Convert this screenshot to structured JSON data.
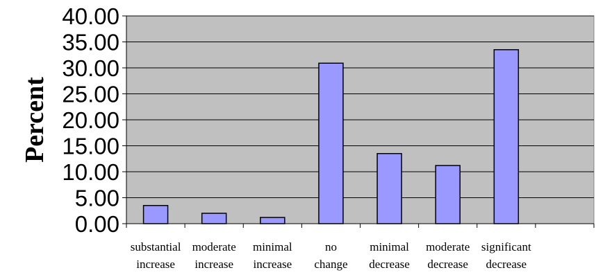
{
  "chart_data": {
    "type": "bar",
    "title": "",
    "xlabel": "",
    "ylabel": "Percent",
    "ylim": [
      0,
      40
    ],
    "yticks": [
      "0.00",
      "5.00",
      "10.00",
      "15.00",
      "20.00",
      "25.00",
      "30.00",
      "35.00",
      "40.00"
    ],
    "grid": true,
    "legend": "none",
    "categories": [
      [
        "substantial",
        "increase"
      ],
      [
        "moderate",
        "increase"
      ],
      [
        "minimal",
        "increase"
      ],
      [
        "no",
        "change"
      ],
      [
        "minimal",
        "decrease"
      ],
      [
        "moderate",
        "decrease"
      ],
      [
        "significant",
        "decrease"
      ]
    ],
    "values": [
      3.5,
      2.0,
      1.2,
      30.9,
      13.5,
      11.2,
      33.5
    ],
    "colors": {
      "bar_fill": "#9999ff",
      "plot_background": "#c0c0c0",
      "gridline": "#000000",
      "bar_stroke": "#000000"
    }
  }
}
